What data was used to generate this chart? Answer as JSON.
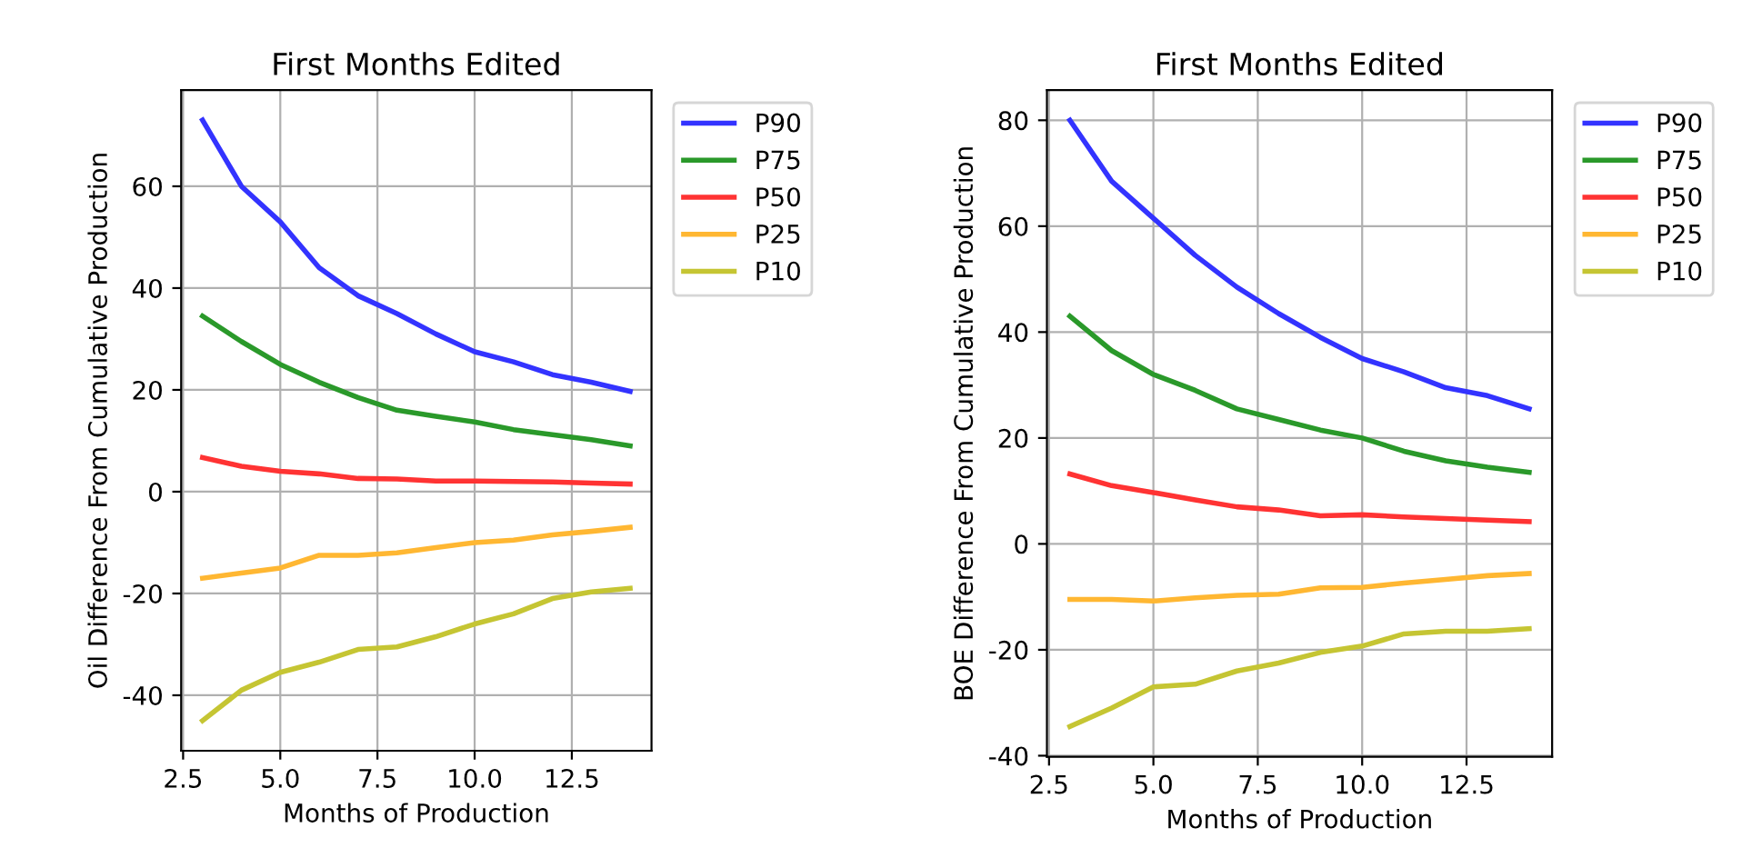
{
  "chart_data": [
    {
      "type": "line",
      "title": "First Months Edited",
      "xlabel": "Months of Production",
      "ylabel": "Oil Difference From Cumulative Production",
      "x": [
        3,
        4,
        5,
        6,
        7,
        8,
        9,
        10,
        11,
        12,
        13,
        14
      ],
      "series": [
        {
          "name": "P90",
          "color": "#3333ff",
          "values": [
            73,
            60,
            53,
            44,
            38.5,
            35,
            31,
            27.5,
            25.5,
            23,
            21.5,
            19.7
          ]
        },
        {
          "name": "P75",
          "color": "#2a992a",
          "values": [
            34.5,
            29.5,
            25,
            21.5,
            18.5,
            16,
            14.8,
            13.7,
            12.2,
            11.2,
            10.2,
            9
          ]
        },
        {
          "name": "P50",
          "color": "#ff3333",
          "values": [
            6.7,
            5,
            4,
            3.5,
            2.6,
            2.5,
            2.1,
            2.1,
            2,
            1.9,
            1.7,
            1.5
          ]
        },
        {
          "name": "P25",
          "color": "#ffb732",
          "values": [
            -17,
            -16,
            -15,
            -12.5,
            -12.5,
            -12,
            -11,
            -10,
            -9.5,
            -8.5,
            -7.8,
            -7
          ]
        },
        {
          "name": "P10",
          "color": "#c5c533",
          "values": [
            -45,
            -39,
            -35.5,
            -33.5,
            -31,
            -30.5,
            -28.5,
            -26,
            -24,
            -21,
            -19.7,
            -19
          ]
        }
      ],
      "xlim": [
        2.45,
        14.55
      ],
      "xticks": [
        {
          "value": 2.5,
          "label": "2.5"
        },
        {
          "value": 5,
          "label": "5.0"
        },
        {
          "value": 7.5,
          "label": "7.5"
        },
        {
          "value": 10,
          "label": "10.0"
        },
        {
          "value": 12.5,
          "label": "12.5"
        }
      ],
      "ylim": [
        -50.9,
        78.9
      ],
      "yticks": [
        -40,
        -20,
        0,
        20,
        40,
        60
      ],
      "grid": true,
      "legend": "top right",
      "marker": "none",
      "line_style": "solid"
    },
    {
      "type": "line",
      "title": "First Months Edited",
      "xlabel": "Months of Production",
      "ylabel": "BOE Difference From Cumulative Production",
      "x": [
        3,
        4,
        5,
        6,
        7,
        8,
        9,
        10,
        11,
        12,
        13,
        14
      ],
      "series": [
        {
          "name": "P90",
          "color": "#3333ff",
          "values": [
            80,
            68.5,
            61.5,
            54.5,
            48.5,
            43.5,
            39,
            35,
            32.5,
            29.5,
            28,
            25.5
          ]
        },
        {
          "name": "P75",
          "color": "#2a992a",
          "values": [
            43,
            36.5,
            32,
            29,
            25.5,
            23.5,
            21.5,
            20,
            17.5,
            15.7,
            14.5,
            13.5
          ]
        },
        {
          "name": "P50",
          "color": "#ff3333",
          "values": [
            13.2,
            11,
            9.7,
            8.3,
            7,
            6.4,
            5.3,
            5.5,
            5.1,
            4.8,
            4.5,
            4.2
          ]
        },
        {
          "name": "P25",
          "color": "#ffb732",
          "values": [
            -10.5,
            -10.5,
            -10.8,
            -10.2,
            -9.7,
            -9.5,
            -8.3,
            -8.2,
            -7.4,
            -6.7,
            -6,
            -5.6
          ]
        },
        {
          "name": "P10",
          "color": "#c5c533",
          "values": [
            -34.5,
            -31,
            -27,
            -26.5,
            -24,
            -22.5,
            -20.5,
            -19.3,
            -17,
            -16.5,
            -16.5,
            -16
          ]
        }
      ],
      "xlim": [
        2.45,
        14.55
      ],
      "xticks": [
        {
          "value": 2.5,
          "label": "2.5"
        },
        {
          "value": 5,
          "label": "5.0"
        },
        {
          "value": 7.5,
          "label": "7.5"
        },
        {
          "value": 10,
          "label": "10.0"
        },
        {
          "value": 12.5,
          "label": "12.5"
        }
      ],
      "ylim": [
        -40.2,
        85.7
      ],
      "yticks": [
        -40,
        -20,
        0,
        20,
        40,
        60,
        80
      ],
      "grid": true,
      "legend": "top right",
      "marker": "none",
      "line_style": "solid"
    }
  ]
}
